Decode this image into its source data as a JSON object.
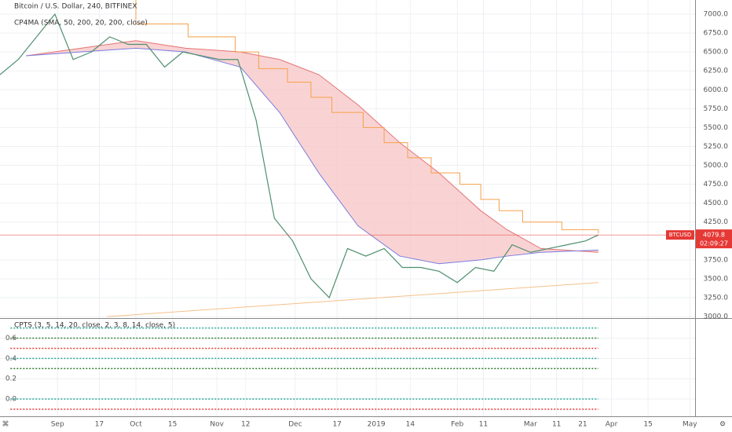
{
  "chart_data": {
    "type": "price",
    "title": "Bitcoin / U.S. Dollar, 240, BITFINEX",
    "indicator": "CP4MA (SMA, 50, 200, 20, 200, close)",
    "xlim": [
      "2018-08-10",
      "2019-05-03"
    ],
    "xticks": [
      {
        "value": "2018-09-01",
        "label": "Sep"
      },
      {
        "value": "2018-09-17",
        "label": "17"
      },
      {
        "value": "2018-10-01",
        "label": "Oct"
      },
      {
        "value": "2018-10-15",
        "label": "15"
      },
      {
        "value": "2018-11-01",
        "label": "Nov"
      },
      {
        "value": "2018-11-12",
        "label": "12"
      },
      {
        "value": "2018-12-01",
        "label": "Dec"
      },
      {
        "value": "2018-12-17",
        "label": "17"
      },
      {
        "value": "2019-01-01",
        "label": "2019"
      },
      {
        "value": "2019-01-14",
        "label": "14"
      },
      {
        "value": "2019-02-01",
        "label": "Feb"
      },
      {
        "value": "2019-02-11",
        "label": "11"
      },
      {
        "value": "2019-03-01",
        "label": "Mar"
      },
      {
        "value": "2019-03-11",
        "label": "11"
      },
      {
        "value": "2019-03-21",
        "label": "21"
      },
      {
        "value": "2019-04-01",
        "label": "Apr"
      },
      {
        "value": "2019-04-15",
        "label": "15"
      },
      {
        "value": "2019-05-01",
        "label": "May"
      }
    ],
    "ylim": [
      2980,
      7187
    ],
    "yticks": [
      {
        "value": 3000,
        "label": "3000.0"
      },
      {
        "value": 3250,
        "label": "3250.0"
      },
      {
        "value": 3500,
        "label": "3500.0"
      },
      {
        "value": 3750,
        "label": "3750.0"
      },
      {
        "value": 4250,
        "label": "4250.0"
      },
      {
        "value": 4500,
        "label": "4500.0"
      },
      {
        "value": 4750,
        "label": "4750.0"
      },
      {
        "value": 5000,
        "label": "5000.0"
      },
      {
        "value": 5250,
        "label": "5250.0"
      },
      {
        "value": 5500,
        "label": "5500.0"
      },
      {
        "value": 5750,
        "label": "5750.0"
      },
      {
        "value": 6000,
        "label": "6000.0"
      },
      {
        "value": 6250,
        "label": "6250.0"
      },
      {
        "value": 6500,
        "label": "6500.0"
      },
      {
        "value": 6750,
        "label": "6750.0"
      },
      {
        "value": 7000,
        "label": "7000.0"
      }
    ],
    "price": {
      "color": "#4e8f6e",
      "x": [
        "2018-08-10",
        "2018-08-17",
        "2018-08-24",
        "2018-08-31",
        "2018-09-07",
        "2018-09-14",
        "2018-09-21",
        "2018-09-28",
        "2018-10-05",
        "2018-10-12",
        "2018-10-19",
        "2018-10-26",
        "2018-11-02",
        "2018-11-09",
        "2018-11-16",
        "2018-11-23",
        "2018-11-30",
        "2018-12-07",
        "2018-12-14",
        "2018-12-21",
        "2018-12-28",
        "2019-01-04",
        "2019-01-11",
        "2019-01-18",
        "2019-01-25",
        "2019-02-01",
        "2019-02-08",
        "2019-02-15",
        "2019-02-22",
        "2019-03-01",
        "2019-03-08",
        "2019-03-15",
        "2019-03-22",
        "2019-03-27"
      ],
      "values": [
        6200,
        6400,
        6700,
        7000,
        6400,
        6500,
        6700,
        6600,
        6600,
        6300,
        6500,
        6450,
        6400,
        6400,
        5600,
        4300,
        4000,
        3500,
        3250,
        3900,
        3800,
        3900,
        3650,
        3650,
        3600,
        3450,
        3650,
        3600,
        3950,
        3850,
        3900,
        3950,
        4000,
        4080
      ]
    },
    "bands": [
      {
        "color": "#e57373",
        "x": [
          "2018-08-20",
          "2018-09-10",
          "2018-10-01",
          "2018-10-20",
          "2018-11-10",
          "2018-11-25",
          "2018-12-10",
          "2018-12-25",
          "2019-01-10",
          "2019-01-25",
          "2019-02-10",
          "2019-02-20",
          "2019-03-05",
          "2019-03-27"
        ],
        "values": [
          6450,
          6550,
          6650,
          6550,
          6500,
          6400,
          6200,
          5800,
          5300,
          4900,
          4400,
          4150,
          3900,
          3850
        ]
      },
      {
        "color": "#7c7ce0",
        "x": [
          "2018-08-20",
          "2018-09-10",
          "2018-10-01",
          "2018-10-20",
          "2018-11-10",
          "2018-11-25",
          "2018-12-10",
          "2018-12-25",
          "2019-01-10",
          "2019-01-25",
          "2019-02-10",
          "2019-02-20",
          "2019-03-05",
          "2019-03-27"
        ],
        "values": [
          6450,
          6500,
          6550,
          6500,
          6300,
          5700,
          4900,
          4200,
          3800,
          3700,
          3750,
          3800,
          3850,
          3880
        ]
      }
    ],
    "band_fill": "#f8c8c8",
    "upper_step": {
      "color": "#f5a04a",
      "x": [
        "2018-09-15",
        "2018-10-01",
        "2018-10-21",
        "2018-11-08",
        "2018-11-17",
        "2018-11-28",
        "2018-12-07",
        "2018-12-15",
        "2018-12-27",
        "2019-01-04",
        "2019-01-13",
        "2019-01-22",
        "2019-02-02",
        "2019-02-10",
        "2019-02-17",
        "2019-02-26",
        "2019-03-13",
        "2019-03-27"
      ],
      "values": [
        7200,
        6870,
        6700,
        6500,
        6280,
        6100,
        5900,
        5700,
        5500,
        5300,
        5100,
        4900,
        4750,
        4550,
        4400,
        4250,
        4150,
        4100
      ]
    },
    "lower_line": {
      "color": "#f5c08a",
      "x": [
        "2018-09-20",
        "2019-03-27"
      ],
      "values": [
        3000,
        3450
      ]
    },
    "last": {
      "symbol": "BTCUSD",
      "value": 4079.8,
      "countdown": "02:09:27",
      "color": "#e53935"
    },
    "oscillator": {
      "title": "CPTS (3, 5, 14, 20, close, 2, 3, 8, 14, close, 5)",
      "ylim": [
        -0.17,
        0.79
      ],
      "yticks": [
        {
          "value": 0.0,
          "label": "0.0"
        },
        0.2,
        0.4,
        0.6
      ],
      "series": [
        {
          "color": "#26a69a",
          "x": [
            "2018-08-14",
            "2019-03-27"
          ],
          "values": [
            0.7,
            0.7
          ]
        },
        {
          "color": "#2e7d32",
          "x": [
            "2018-08-14",
            "2019-03-27"
          ],
          "values": [
            0.6,
            0.6
          ]
        },
        {
          "color": "#e53935",
          "x": [
            "2018-08-14",
            "2019-03-27"
          ],
          "values": [
            0.5,
            0.5
          ]
        },
        {
          "color": "#26a69a",
          "x": [
            "2018-08-14",
            "2019-03-27"
          ],
          "values": [
            0.4,
            0.4
          ]
        },
        {
          "color": "#2e7d32",
          "x": [
            "2018-08-14",
            "2019-03-27"
          ],
          "values": [
            0.3,
            0.3
          ]
        },
        {
          "color": "#26a69a",
          "x": [
            "2018-08-14",
            "2019-03-27"
          ],
          "values": [
            0.0,
            0.0
          ]
        },
        {
          "color": "#e53935",
          "x": [
            "2018-08-14",
            "2019-03-27"
          ],
          "values": [
            -0.1,
            -0.1
          ]
        }
      ]
    }
  }
}
